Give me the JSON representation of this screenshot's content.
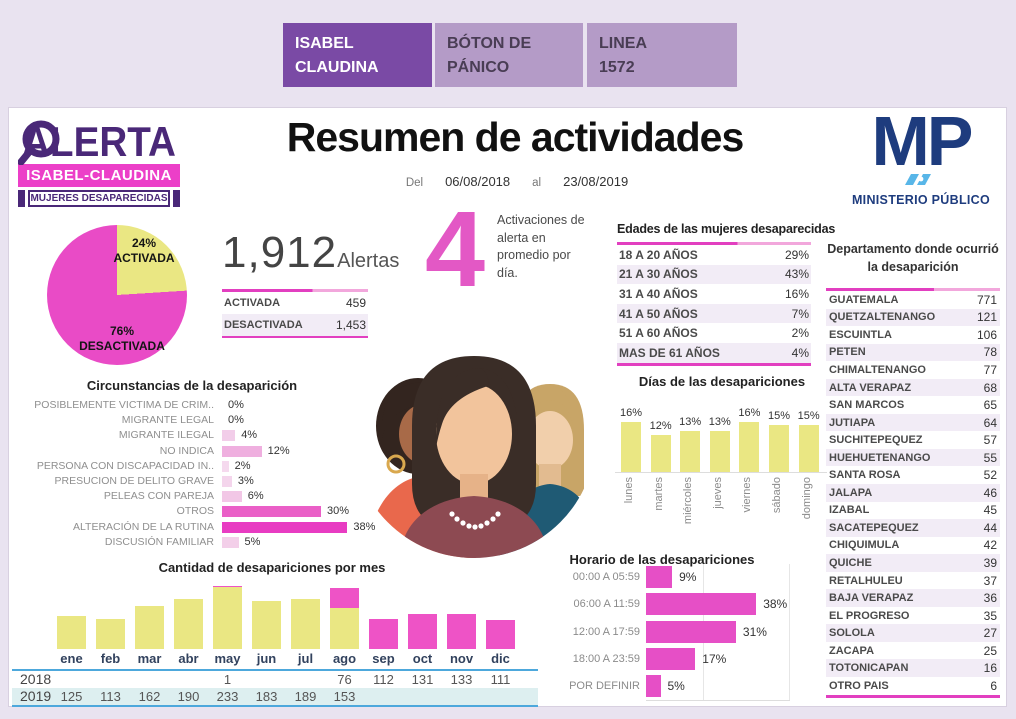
{
  "tabs": [
    {
      "line1": "ISABEL",
      "line2": "CLAUDINA",
      "active": true
    },
    {
      "line1": "BÓTON DE",
      "line2": "PÁNICO",
      "active": false
    },
    {
      "line1": "LINEA",
      "line2": "1572",
      "active": false
    }
  ],
  "header": {
    "title": "Resumen de actividades",
    "date_prefix": "Del",
    "date_from": "06/08/2018",
    "date_mid": "al",
    "date_to": "23/08/2019"
  },
  "logos": {
    "alerta": {
      "word": "ALERTA",
      "banner": "ISABEL-CLAUDINA",
      "subbanner": "MUJERES DESAPARECIDAS"
    },
    "mp": {
      "initials": "MP",
      "caption": "MINISTERIO PÚBLICO"
    }
  },
  "summary": {
    "total": "1,912",
    "total_unit": "Alertas",
    "daily_avg": "4",
    "daily_avg_text": "Activaciones de alerta en promedio por día.",
    "status_table": {
      "rows": [
        {
          "label": "ACTIVADA",
          "value": "459"
        },
        {
          "label": "DESACTIVADA",
          "value": "1,453"
        }
      ]
    }
  },
  "colors": {
    "magenta": "#e23fc0",
    "yellow": "#eae783",
    "tab_active": "#7a4aa5",
    "tab_inactive": "#b49bc7",
    "navy": "#1e3c7e",
    "stripe": "#f2ecf6",
    "blue_line": "#4da8dc"
  },
  "chart_data": [
    {
      "type": "pie",
      "title": "Alertas activadas y desactivadas",
      "slices": [
        {
          "label": "ACTIVADA",
          "pct": 24,
          "pct_label": "24%",
          "color": "#eae783"
        },
        {
          "label": "DESACTIVADA",
          "pct": 76,
          "pct_label": "76%",
          "color": "#e94bc6"
        }
      ]
    },
    {
      "type": "table",
      "title": "Edades de las mujeres desaparecidas",
      "rows": [
        {
          "label": "18 A 20 AÑOS",
          "pct": 29
        },
        {
          "label": "21 A 30 AÑOS",
          "pct": 43
        },
        {
          "label": "31 A 40 AÑOS",
          "pct": 16
        },
        {
          "label": "41 A 50 AÑOS",
          "pct": 7
        },
        {
          "label": "51 A 60 AÑOS",
          "pct": 2
        },
        {
          "label": "MAS DE 61 AÑOS",
          "pct": 4
        }
      ]
    },
    {
      "type": "bar",
      "orientation": "horizontal",
      "title": "Circunstancias de la desaparición",
      "unit": "%",
      "rows": [
        {
          "label": "POSIBLEMENTE VICTIMA DE CRIM..",
          "pct": 0,
          "color": "#f5d9ee"
        },
        {
          "label": "MIGRANTE LEGAL",
          "pct": 0,
          "color": "#f5d9ee"
        },
        {
          "label": "MIGRANTE ILEGAL",
          "pct": 4,
          "color": "#f2cde9"
        },
        {
          "label": "NO INDICA",
          "pct": 12,
          "color": "#efafdf"
        },
        {
          "label": "PERSONA CON DISCAPACIDAD IN..",
          "pct": 2,
          "color": "#f5d9ee"
        },
        {
          "label": "PRESUCION DE DELITO GRAVE",
          "pct": 3,
          "color": "#f4d5ec"
        },
        {
          "label": "PELEAS CON PAREJA",
          "pct": 6,
          "color": "#f2c7e6"
        },
        {
          "label": "OTROS",
          "pct": 30,
          "color": "#ea5fc7"
        },
        {
          "label": "ALTERACIÓN DE LA RUTINA",
          "pct": 38,
          "color": "#e83cc2"
        },
        {
          "label": "DISCUSIÓN FAMILIAR",
          "pct": 5,
          "color": "#f3cfe9"
        }
      ]
    },
    {
      "type": "bar",
      "title": "Días de las desapariciones",
      "unit": "%",
      "color": "#eae783",
      "categories": [
        "lunes",
        "martes",
        "miércoles",
        "jueves",
        "viernes",
        "sábado",
        "domingo"
      ],
      "values": [
        16,
        12,
        13,
        13,
        16,
        15,
        15
      ]
    },
    {
      "type": "bar",
      "orientation": "horizontal",
      "title": "Horario de las desapariciones",
      "unit": "%",
      "color": "#e64fc6",
      "categories": [
        "00:00 A 05:59",
        "06:00 A 11:59",
        "12:00 A 17:59",
        "18:00 A 23:59",
        "POR DEFINIR"
      ],
      "values": [
        9,
        38,
        31,
        17,
        5
      ]
    },
    {
      "type": "bar",
      "stacked": true,
      "title": "Cantidad de desapariciones por mes",
      "categories": [
        "ene",
        "feb",
        "mar",
        "abr",
        "may",
        "jun",
        "jul",
        "ago",
        "sep",
        "oct",
        "nov",
        "dic"
      ],
      "ylim": [
        0,
        234
      ],
      "series": [
        {
          "name": "2019",
          "color": "#eae783",
          "values": [
            125,
            113,
            162,
            190,
            233,
            183,
            189,
            153,
            null,
            null,
            null,
            null
          ]
        },
        {
          "name": "2018",
          "color": "#ee53c6",
          "values": [
            null,
            null,
            null,
            null,
            1,
            null,
            null,
            76,
            112,
            131,
            133,
            111
          ]
        }
      ]
    },
    {
      "type": "table",
      "title": "Departamento donde ocurrió la desaparición",
      "rows": [
        {
          "label": "GUATEMALA",
          "value": 771
        },
        {
          "label": "QUETZALTENANGO",
          "value": 121
        },
        {
          "label": "ESCUINTLA",
          "value": 106
        },
        {
          "label": "PETEN",
          "value": 78
        },
        {
          "label": "CHIMALTENANGO",
          "value": 77
        },
        {
          "label": "ALTA VERAPAZ",
          "value": 68
        },
        {
          "label": "SAN MARCOS",
          "value": 65
        },
        {
          "label": "JUTIAPA",
          "value": 64
        },
        {
          "label": "SUCHITEPEQUEZ",
          "value": 57
        },
        {
          "label": "HUEHUETENANGO",
          "value": 55
        },
        {
          "label": "SANTA ROSA",
          "value": 52
        },
        {
          "label": "JALAPA",
          "value": 46
        },
        {
          "label": "IZABAL",
          "value": 45
        },
        {
          "label": "SACATEPEQUEZ",
          "value": 44
        },
        {
          "label": "CHIQUIMULA",
          "value": 42
        },
        {
          "label": "QUICHE",
          "value": 39
        },
        {
          "label": "RETALHULEU",
          "value": 37
        },
        {
          "label": "BAJA VERAPAZ",
          "value": 36
        },
        {
          "label": "EL PROGRESO",
          "value": 35
        },
        {
          "label": "SOLOLA",
          "value": 27
        },
        {
          "label": "ZACAPA",
          "value": 25
        },
        {
          "label": "TOTONICAPAN",
          "value": 16
        },
        {
          "label": "OTRO PAIS",
          "value": 6
        }
      ]
    }
  ]
}
